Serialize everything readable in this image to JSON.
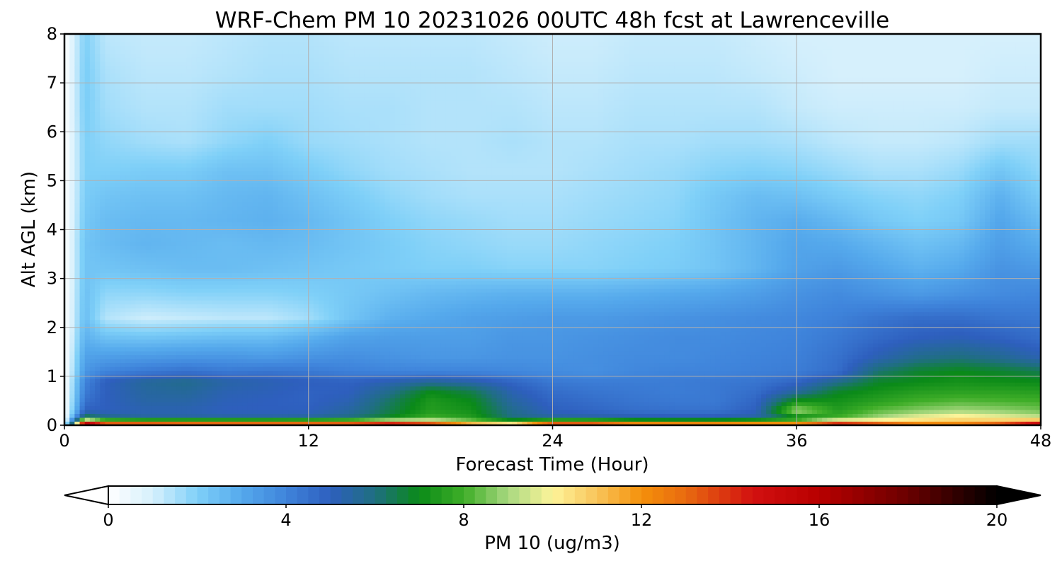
{
  "chart_data": {
    "type": "heatmap",
    "title": "WRF-Chem PM 10  20231026 00UTC 48h fcst at Lawrenceville",
    "xlabel": "Forecast Time (Hour)",
    "ylabel": "Alt AGL (km)",
    "xlim": [
      0,
      48
    ],
    "ylim": [
      0,
      8
    ],
    "xticks": [
      0,
      12,
      24,
      36,
      48
    ],
    "yticks": [
      0,
      1,
      2,
      3,
      4,
      5,
      6,
      7,
      8
    ],
    "grid": true,
    "colorbar": {
      "label": "PM 10  (ug/m3)",
      "min": 0,
      "max": 20,
      "ticks": [
        0,
        4,
        8,
        12,
        16,
        20
      ],
      "extend": "both",
      "stops": [
        {
          "v": 0,
          "c": "#ffffff"
        },
        {
          "v": 1,
          "c": "#d6f0fc"
        },
        {
          "v": 2,
          "c": "#7fd0f8"
        },
        {
          "v": 3,
          "c": "#55a9ec"
        },
        {
          "v": 4,
          "c": "#3f84db"
        },
        {
          "v": 5,
          "c": "#2e5fbe"
        },
        {
          "v": 6,
          "c": "#1f6f80"
        },
        {
          "v": 7,
          "c": "#0a8a18"
        },
        {
          "v": 8,
          "c": "#3fae28"
        },
        {
          "v": 9,
          "c": "#a8d880"
        },
        {
          "v": 10,
          "c": "#fef49a"
        },
        {
          "v": 11,
          "c": "#f8c45a"
        },
        {
          "v": 12,
          "c": "#f5900a"
        },
        {
          "v": 13,
          "c": "#e86a10"
        },
        {
          "v": 14.5,
          "c": "#d21010"
        },
        {
          "v": 16,
          "c": "#b80000"
        },
        {
          "v": 18,
          "c": "#6a0000"
        },
        {
          "v": 20,
          "c": "#000000"
        }
      ]
    },
    "x": [
      0,
      1,
      2,
      4,
      6,
      8,
      10,
      12,
      14,
      16,
      18,
      20,
      22,
      24,
      26,
      28,
      30,
      32,
      34,
      36,
      38,
      40,
      42,
      44,
      46,
      48
    ],
    "y": [
      0,
      0.05,
      0.15,
      0.3,
      0.5,
      0.7,
      0.9,
      1.1,
      1.4,
      1.8,
      2.2,
      2.7,
      3.2,
      3.7,
      4.2,
      4.7,
      5.2,
      5.8,
      6.5,
      7.2,
      8
    ],
    "z": [
      [
        0,
        19,
        18,
        18,
        17,
        17,
        17,
        17,
        18,
        19,
        19,
        16,
        15,
        18,
        18,
        17,
        17,
        17,
        16,
        16,
        18,
        18,
        17,
        17,
        18,
        19
      ],
      [
        0,
        15,
        12,
        12,
        12,
        12,
        12,
        12,
        12,
        13,
        12,
        10,
        9,
        12,
        12,
        11,
        11,
        11,
        11,
        11,
        13,
        12,
        11,
        11,
        12,
        14
      ],
      [
        0,
        7,
        6,
        5.5,
        5.5,
        5.5,
        5.5,
        5.6,
        6,
        7,
        8,
        7.5,
        6,
        5.6,
        5.5,
        5.3,
        5.2,
        5.2,
        5.5,
        6.5,
        8,
        9,
        10,
        10.5,
        10,
        9.5
      ],
      [
        0,
        5,
        5,
        5.2,
        5.2,
        5,
        5,
        5,
        5.5,
        6.5,
        7.5,
        7.2,
        5.8,
        5,
        4.8,
        4.6,
        4.5,
        4.5,
        5,
        9,
        7.5,
        8.3,
        8.7,
        9,
        8.8,
        8.5
      ],
      [
        0,
        4.5,
        5,
        5.4,
        5.4,
        5.1,
        5,
        4.9,
        5.2,
        6.3,
        7.4,
        7,
        5.5,
        4.8,
        4.6,
        4.4,
        4.3,
        4.3,
        4.8,
        7.2,
        7.2,
        7.6,
        8,
        8.2,
        8.1,
        8
      ],
      [
        0,
        4.2,
        5,
        5.5,
        5.6,
        5.2,
        5.1,
        4.9,
        5,
        5.8,
        7,
        6.5,
        5.2,
        4.6,
        4.4,
        4.3,
        4.2,
        4.3,
        4.6,
        5.5,
        6.8,
        7.2,
        7.5,
        7.6,
        7.6,
        7.5
      ],
      [
        0,
        4,
        5,
        5.6,
        5.8,
        5.4,
        5.2,
        5,
        4.9,
        5.2,
        5.6,
        5.3,
        4.8,
        4.3,
        4.2,
        4.2,
        4.2,
        4.3,
        4.4,
        4.8,
        5.8,
        6.8,
        7,
        7.2,
        7.1,
        7
      ],
      [
        0,
        3.5,
        4,
        4.3,
        4.5,
        4.3,
        4.4,
        4.3,
        4.1,
        4,
        4,
        4,
        3.9,
        3.8,
        3.7,
        3.9,
        4,
        4,
        4.1,
        4.2,
        4.6,
        6.2,
        6.8,
        7,
        6.8,
        6.5
      ],
      [
        0,
        3.2,
        3.3,
        3.4,
        3.5,
        3.5,
        3.4,
        3.6,
        3.7,
        3.6,
        3.5,
        3.5,
        3.6,
        3.6,
        3.7,
        3.8,
        3.8,
        3.9,
        4,
        4.1,
        4.5,
        5.2,
        5.8,
        6,
        5.7,
        5.2
      ],
      [
        0,
        2.8,
        2.4,
        2.3,
        2.4,
        2.5,
        2.5,
        2.8,
        3.2,
        3.3,
        3.3,
        3.3,
        3.5,
        3.5,
        3.6,
        3.7,
        3.8,
        3.8,
        3.9,
        4,
        4.3,
        4.7,
        5,
        5.1,
        4.9,
        4.6
      ],
      [
        0,
        2.5,
        1.4,
        1.1,
        1.2,
        1.3,
        1.3,
        1.6,
        2.3,
        2.8,
        3.0,
        3.2,
        3.3,
        3.4,
        3.4,
        3.5,
        3.6,
        3.7,
        3.8,
        3.9,
        4.1,
        4.4,
        4.6,
        4.6,
        4.4,
        4.3
      ],
      [
        0,
        2.4,
        1.8,
        1.8,
        1.9,
        1.9,
        1.9,
        2,
        2.2,
        2.4,
        2.6,
        2.7,
        2.8,
        2.8,
        2.8,
        2.9,
        3,
        3.1,
        3.3,
        3.6,
        3.8,
        3.6,
        3.4,
        3.6,
        3.8,
        3.9
      ],
      [
        0,
        2.3,
        2.3,
        2.4,
        2.5,
        2.5,
        2.4,
        2.3,
        2.2,
        2.1,
        2,
        2,
        1.9,
        1.9,
        1.9,
        2,
        2.1,
        2.3,
        2.7,
        3.2,
        3.4,
        3.1,
        2.8,
        3,
        3.6,
        3.4
      ],
      [
        0,
        2.3,
        2.5,
        2.7,
        2.6,
        2.5,
        2.6,
        2.5,
        2.3,
        2.1,
        1.9,
        1.8,
        1.7,
        1.7,
        1.8,
        1.9,
        2,
        2.3,
        2.7,
        3.1,
        3.0,
        2.7,
        2.4,
        2.6,
        3.3,
        2.9
      ],
      [
        0,
        2.2,
        2.5,
        2.6,
        2.6,
        2.7,
        2.8,
        2.6,
        2.3,
        2.0,
        1.8,
        1.7,
        1.6,
        1.6,
        1.7,
        1.8,
        1.9,
        2.3,
        2.7,
        2.9,
        2.6,
        2.2,
        2.0,
        2.2,
        3.1,
        2.5
      ],
      [
        0,
        2.1,
        2.3,
        2.4,
        2.4,
        2.6,
        2.7,
        2.4,
        2.1,
        1.8,
        1.6,
        1.5,
        1.5,
        1.5,
        1.6,
        1.7,
        1.8,
        2.2,
        2.5,
        2.4,
        2.1,
        1.9,
        1.8,
        2.0,
        2.8,
        2.1
      ],
      [
        0,
        2.0,
        2.0,
        2.1,
        2.1,
        2.4,
        2.4,
        2.1,
        1.8,
        1.6,
        1.5,
        1.4,
        1.4,
        1.4,
        1.5,
        1.6,
        1.7,
        1.9,
        2.0,
        1.9,
        1.7,
        1.5,
        1.5,
        1.7,
        2.3,
        1.8
      ],
      [
        0,
        2.0,
        1.8,
        1.6,
        1.5,
        1.8,
        2.0,
        1.7,
        1.6,
        1.5,
        1.4,
        1.4,
        1.5,
        1.4,
        1.4,
        1.5,
        1.5,
        1.6,
        1.6,
        1.5,
        1.3,
        1.2,
        1.2,
        1.3,
        1.6,
        1.6
      ],
      [
        0,
        2.1,
        1.6,
        1.4,
        1.4,
        1.6,
        1.6,
        1.6,
        1.5,
        1.5,
        1.4,
        1.4,
        1.4,
        1.3,
        1.3,
        1.4,
        1.4,
        1.4,
        1.4,
        1.2,
        1.1,
        1.1,
        1.1,
        1.1,
        1.2,
        1.2
      ],
      [
        0,
        2.1,
        1.5,
        1.3,
        1.3,
        1.4,
        1.5,
        1.5,
        1.4,
        1.4,
        1.4,
        1.4,
        1.3,
        1.2,
        1.2,
        1.3,
        1.3,
        1.3,
        1.2,
        1.1,
        1.0,
        1.0,
        1.0,
        1.0,
        1.1,
        1.1
      ],
      [
        0,
        2.0,
        1.3,
        1.2,
        1.2,
        1.3,
        1.4,
        1.4,
        1.3,
        1.3,
        1.3,
        1.3,
        1.2,
        1.1,
        1.1,
        1.2,
        1.2,
        1.2,
        1.1,
        1.0,
        1.0,
        1.0,
        1.0,
        1.0,
        1.0,
        1.0
      ]
    ]
  }
}
